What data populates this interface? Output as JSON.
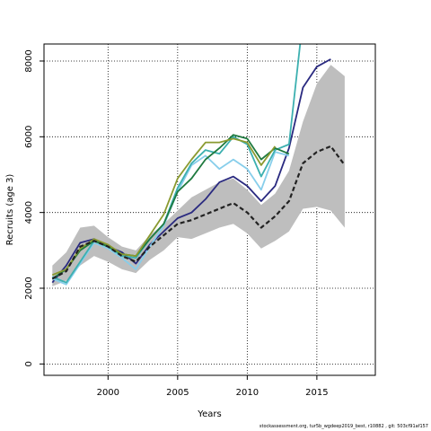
{
  "chart_data": {
    "type": "line",
    "xlabel": "Years",
    "ylabel": "Recruits (age 3)",
    "xlim": [
      1995.4,
      2019.2
    ],
    "ylim": [
      -300,
      8450
    ],
    "x_ticks": [
      2000,
      2005,
      2010,
      2015
    ],
    "y_ticks": [
      0,
      2000,
      4000,
      6000,
      8000
    ],
    "grid": "dotted",
    "confidence_band": {
      "x": [
        1996,
        1997,
        1998,
        1999,
        2000,
        2001,
        2002,
        2003,
        2004,
        2005,
        2006,
        2007,
        2008,
        2009,
        2010,
        2011,
        2012,
        2013,
        2014,
        2015,
        2016,
        2017
      ],
      "lower": [
        2050,
        2200,
        2600,
        2850,
        2700,
        2500,
        2400,
        2750,
        3000,
        3350,
        3300,
        3450,
        3600,
        3700,
        3450,
        3050,
        3250,
        3500,
        4100,
        4150,
        4050,
        3600
      ],
      "upper": [
        2600,
        2950,
        3600,
        3650,
        3350,
        3100,
        3000,
        3400,
        3700,
        4050,
        4400,
        4600,
        4800,
        4900,
        4600,
        4200,
        4500,
        5100,
        6400,
        7400,
        7900,
        7600
      ]
    },
    "series": [
      {
        "x": [
          1996,
          1997,
          1998,
          1999,
          2000,
          2001,
          2002,
          2003,
          2004,
          2005,
          2006,
          2007,
          2008,
          2009,
          2010,
          2011,
          2012,
          2013,
          2014,
          2015,
          2016,
          2017
        ],
        "values": [
          2250,
          2450,
          3100,
          3250,
          3100,
          2850,
          2700,
          3100,
          3400,
          3700,
          3800,
          3950,
          4100,
          4250,
          4000,
          3600,
          3900,
          4300,
          5300,
          5600,
          5750,
          5250
        ],
        "color": "#222222",
        "dash": "5,3",
        "width": 2.2
      },
      {
        "x": [
          1996,
          1997,
          1998,
          1999,
          2000,
          2001,
          2002,
          2003,
          2004,
          2005,
          2006,
          2007,
          2008,
          2009,
          2010,
          2011,
          2012,
          2013,
          2014,
          2015,
          2016
        ],
        "values": [
          2150,
          2600,
          3200,
          3300,
          3100,
          2950,
          2650,
          3150,
          3500,
          3850,
          4000,
          4350,
          4800,
          4950,
          4700,
          4300,
          4700,
          5700,
          7300,
          7850,
          8050
        ],
        "color": "#2a2a80",
        "dash": "",
        "width": 1.8
      },
      {
        "x": [
          1996,
          1997,
          1998,
          1999,
          2000,
          2001,
          2002,
          2003,
          2004,
          2005,
          2006,
          2007,
          2008,
          2009,
          2010,
          2011,
          2012,
          2013
        ],
        "values": [
          2250,
          2100,
          2650,
          3200,
          3050,
          2800,
          2500,
          3100,
          3650,
          4550,
          5250,
          5500,
          5150,
          5400,
          5150,
          4600,
          5600,
          5500
        ],
        "color": "#87ceeb",
        "dash": "",
        "width": 1.8
      },
      {
        "x": [
          1996,
          1997,
          1998,
          1999,
          2000,
          2001,
          2002,
          2003,
          2004,
          2005,
          2006,
          2007,
          2008,
          2009,
          2010,
          2011,
          2012,
          2013,
          2013.8
        ],
        "values": [
          2300,
          2150,
          2700,
          3250,
          3100,
          2850,
          2800,
          3300,
          3700,
          4650,
          5300,
          5650,
          5550,
          6000,
          5800,
          4950,
          5650,
          5800,
          8450
        ],
        "color": "#3cb0b0",
        "dash": "",
        "width": 1.8
      },
      {
        "x": [
          1996,
          1997,
          1998,
          1999,
          2000,
          2001,
          2002,
          2003,
          2004,
          2005,
          2006,
          2007,
          2008,
          2009,
          2010,
          2011,
          2012,
          2013
        ],
        "values": [
          2250,
          2500,
          3000,
          3250,
          3100,
          2900,
          2850,
          3300,
          3700,
          4550,
          4900,
          5400,
          5700,
          6050,
          5950,
          5400,
          5700,
          5550
        ],
        "color": "#1f7a3f",
        "dash": "",
        "width": 1.8
      },
      {
        "x": [
          1996,
          1997,
          1998,
          1999,
          2000,
          2001,
          2002,
          2003,
          2004,
          2005,
          2006,
          2007,
          2008,
          2009,
          2010,
          2011,
          2012
        ],
        "values": [
          2350,
          2500,
          3050,
          3300,
          3150,
          2900,
          2850,
          3400,
          3950,
          4900,
          5400,
          5850,
          5850,
          5950,
          5850,
          5250,
          5750
        ],
        "color": "#8a9a30",
        "dash": "",
        "width": 1.8
      }
    ]
  },
  "footer": "stockassessment.org, tur5b_wgdeep2019_best, r10882 , git: 503cf91af157"
}
